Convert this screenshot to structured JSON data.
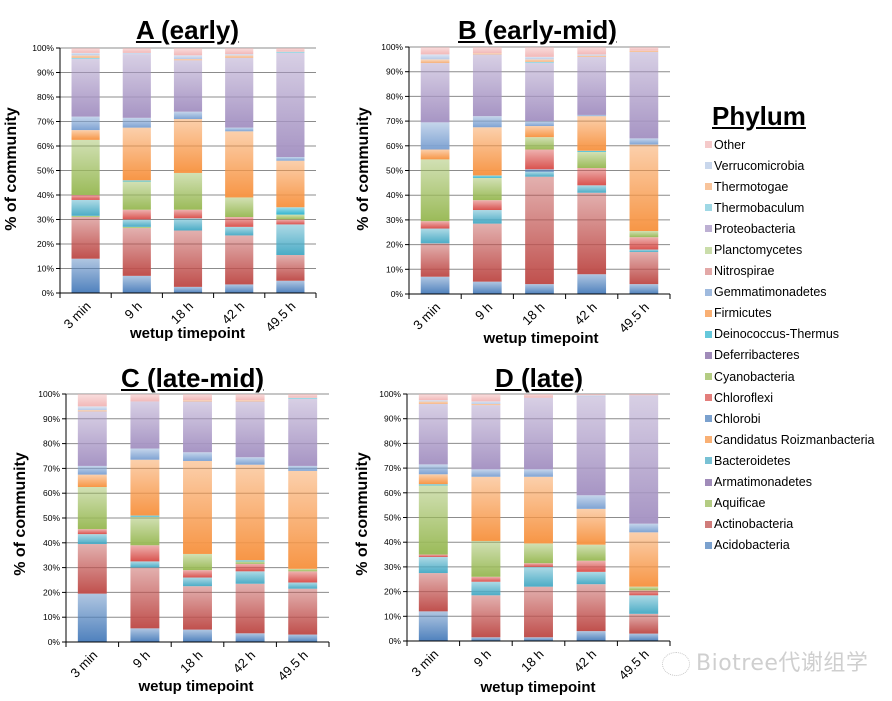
{
  "legend": {
    "title": "Phylum",
    "items_top_to_bottom": [
      "Other",
      "Verrucomicrobia",
      "Thermotogae",
      "Thermobaculum",
      "Proteobacteria",
      "Planctomycetes",
      "Nitrospirae",
      "Gemmatimonadetes",
      "Firmicutes",
      "Deinococcus-Thermus",
      "Deferribacteres",
      "Cyanobacteria",
      "Chloroflexi",
      "Chlorobi",
      "Candidatus Roizmanbacteria",
      "Bacteroidetes",
      "Armatimonadetes",
      "Aquificae",
      "Actinobacteria",
      "Acidobacteria"
    ]
  },
  "phyla": [
    {
      "name": "Acidobacteria",
      "color": "#4F81BD"
    },
    {
      "name": "Actinobacteria",
      "color": "#C0504D"
    },
    {
      "name": "Aquificae",
      "color": "#9BBB59"
    },
    {
      "name": "Armatimonadetes",
      "color": "#8064A2"
    },
    {
      "name": "Bacteroidetes",
      "color": "#4BACC6"
    },
    {
      "name": "Candidatus Roizmanbacteria",
      "color": "#F79646"
    },
    {
      "name": "Chlorobi",
      "color": "#4F81BD"
    },
    {
      "name": "Chloroflexi",
      "color": "#D9534F"
    },
    {
      "name": "Cyanobacteria",
      "color": "#9BBB59"
    },
    {
      "name": "Deferribacteres",
      "color": "#8064A2"
    },
    {
      "name": "Deinococcus-Thermus",
      "color": "#31B5CF"
    },
    {
      "name": "Firmicutes",
      "color": "#F79646"
    },
    {
      "name": "Gemmatimonadetes",
      "color": "#7FA3D3"
    },
    {
      "name": "Nitrospirae",
      "color": "#D98B8A"
    },
    {
      "name": "Planctomycetes",
      "color": "#B8D28E"
    },
    {
      "name": "Proteobacteria",
      "color": "#A795C4"
    },
    {
      "name": "Thermobaculum",
      "color": "#7FCBDC"
    },
    {
      "name": "Thermotogae",
      "color": "#F5B07A"
    },
    {
      "name": "Verrucomicrobia",
      "color": "#B7C9E6"
    },
    {
      "name": "Other",
      "color": "#F2B8B8"
    }
  ],
  "watermark": "Biotree代谢组学",
  "chart_data": [
    {
      "type": "bar",
      "stacked": true,
      "title": "A (early)",
      "xlabel": "wetup timepoint",
      "ylabel": "% of community",
      "ylim": [
        0,
        100
      ],
      "yticks": [
        "0%",
        "10%",
        "20%",
        "30%",
        "40%",
        "50%",
        "60%",
        "70%",
        "80%",
        "90%",
        "100%"
      ],
      "grid": true,
      "categories": [
        "3 min",
        "9 h",
        "18 h",
        "42 h",
        "49.5 h"
      ],
      "series": [
        {
          "name": "Acidobacteria",
          "values": [
            14,
            7,
            2.5,
            3.5,
            5
          ]
        },
        {
          "name": "Actinobacteria",
          "values": [
            17,
            19.5,
            23,
            20,
            10.5
          ]
        },
        {
          "name": "Aquificae",
          "values": [
            0.5,
            0.5,
            0,
            0,
            0
          ]
        },
        {
          "name": "Armatimonadetes",
          "values": [
            0,
            0,
            0,
            0,
            0
          ]
        },
        {
          "name": "Bacteroidetes",
          "values": [
            6.5,
            3,
            5,
            3.5,
            12.5
          ]
        },
        {
          "name": "Candidatus Roizmanbacteria",
          "values": [
            0,
            0,
            0,
            0,
            0
          ]
        },
        {
          "name": "Chlorobi",
          "values": [
            0,
            0,
            0,
            0,
            0
          ]
        },
        {
          "name": "Chloroflexi",
          "values": [
            2,
            4,
            3.5,
            4,
            2
          ]
        },
        {
          "name": "Cyanobacteria",
          "values": [
            22.5,
            11.5,
            15,
            8,
            2
          ]
        },
        {
          "name": "Deferribacteres",
          "values": [
            0,
            0,
            0,
            0,
            0
          ]
        },
        {
          "name": "Deinococcus-Thermus",
          "values": [
            0,
            0.5,
            0,
            0,
            3
          ]
        },
        {
          "name": "Firmicutes",
          "values": [
            4,
            21.5,
            22,
            27,
            19
          ]
        },
        {
          "name": "Gemmatimonadetes",
          "values": [
            5.5,
            4,
            3,
            1.5,
            1.5
          ]
        },
        {
          "name": "Nitrospirae",
          "values": [
            0,
            0,
            0,
            0,
            0
          ]
        },
        {
          "name": "Planctomycetes",
          "values": [
            0,
            0,
            0,
            0,
            0
          ]
        },
        {
          "name": "Proteobacteria",
          "values": [
            23.5,
            26,
            21,
            28.5,
            42.5
          ]
        },
        {
          "name": "Thermobaculum",
          "values": [
            0.5,
            0,
            0,
            0,
            0.5
          ]
        },
        {
          "name": "Thermotogae",
          "values": [
            1,
            0,
            0.5,
            1,
            0
          ]
        },
        {
          "name": "Verrucomicrobia",
          "values": [
            1,
            0.5,
            1.5,
            0.5,
            0
          ]
        },
        {
          "name": "Other",
          "values": [
            2,
            2,
            3,
            2.5,
            1.5
          ]
        }
      ]
    },
    {
      "type": "bar",
      "stacked": true,
      "title": "B (early-mid)",
      "xlabel": "wetup timepoint",
      "ylabel": "% of community",
      "ylim": [
        0,
        100
      ],
      "yticks": [
        "0%",
        "10%",
        "20%",
        "30%",
        "40%",
        "50%",
        "60%",
        "70%",
        "80%",
        "90%",
        "100%"
      ],
      "grid": true,
      "categories": [
        "3 min",
        "9 h",
        "18 h",
        "42 h",
        "49.5 h"
      ],
      "series": [
        {
          "name": "Acidobacteria",
          "values": [
            7,
            5,
            4,
            8,
            4
          ]
        },
        {
          "name": "Actinobacteria",
          "values": [
            13.5,
            23.5,
            43.5,
            33,
            13
          ]
        },
        {
          "name": "Aquificae",
          "values": [
            0,
            0,
            0,
            0,
            0
          ]
        },
        {
          "name": "Armatimonadetes",
          "values": [
            0,
            0,
            0,
            0,
            0
          ]
        },
        {
          "name": "Bacteroidetes",
          "values": [
            6,
            5.5,
            2,
            3,
            1
          ]
        },
        {
          "name": "Candidatus Roizmanbacteria",
          "values": [
            0,
            0,
            0,
            0,
            0
          ]
        },
        {
          "name": "Chlorobi",
          "values": [
            0,
            0,
            1,
            0,
            0
          ]
        },
        {
          "name": "Chloroflexi",
          "values": [
            3,
            4,
            8,
            7,
            5
          ]
        },
        {
          "name": "Cyanobacteria",
          "values": [
            25,
            9,
            5,
            6.5,
            2.5
          ]
        },
        {
          "name": "Deferribacteres",
          "values": [
            0,
            0,
            0,
            0,
            0
          ]
        },
        {
          "name": "Deinococcus-Thermus",
          "values": [
            0,
            1,
            0,
            0.5,
            0
          ]
        },
        {
          "name": "Firmicutes",
          "values": [
            4,
            19.5,
            4.5,
            14,
            35
          ]
        },
        {
          "name": "Gemmatimonadetes",
          "values": [
            11,
            4.5,
            2,
            0.5,
            2.5
          ]
        },
        {
          "name": "Nitrospirae",
          "values": [
            0,
            0,
            0,
            0,
            0
          ]
        },
        {
          "name": "Planctomycetes",
          "values": [
            0,
            0,
            0,
            0,
            0
          ]
        },
        {
          "name": "Proteobacteria",
          "values": [
            24,
            25,
            23.5,
            23.5,
            35
          ]
        },
        {
          "name": "Thermobaculum",
          "values": [
            0,
            0,
            0.5,
            0,
            0
          ]
        },
        {
          "name": "Thermotogae",
          "values": [
            1.5,
            0.5,
            1,
            0.5,
            0.5
          ]
        },
        {
          "name": "Verrucomicrobia",
          "values": [
            2,
            0,
            1,
            0.5,
            0
          ]
        },
        {
          "name": "Other",
          "values": [
            3,
            2.5,
            4,
            3,
            1.5
          ]
        }
      ]
    },
    {
      "type": "bar",
      "stacked": true,
      "title": "C (late-mid)",
      "xlabel": "wetup timepoint",
      "ylabel": "% of community",
      "ylim": [
        0,
        100
      ],
      "yticks": [
        "0%",
        "10%",
        "20%",
        "30%",
        "40%",
        "50%",
        "60%",
        "70%",
        "80%",
        "90%",
        "100%"
      ],
      "grid": true,
      "categories": [
        "3 min",
        "9 h",
        "18 h",
        "42 h",
        "49.5 h"
      ],
      "series": [
        {
          "name": "Acidobacteria",
          "values": [
            19.5,
            5.5,
            5,
            3.5,
            3
          ]
        },
        {
          "name": "Actinobacteria",
          "values": [
            20,
            24.5,
            17.5,
            20,
            18.5
          ]
        },
        {
          "name": "Aquificae",
          "values": [
            0,
            0,
            0,
            0,
            0
          ]
        },
        {
          "name": "Armatimonadetes",
          "values": [
            0,
            0,
            0,
            0,
            0
          ]
        },
        {
          "name": "Bacteroidetes",
          "values": [
            4,
            2.5,
            3.5,
            5,
            2.5
          ]
        },
        {
          "name": "Candidatus Roizmanbacteria",
          "values": [
            0,
            0,
            0,
            0,
            0
          ]
        },
        {
          "name": "Chlorobi",
          "values": [
            0,
            0,
            0,
            0,
            0
          ]
        },
        {
          "name": "Chloroflexi",
          "values": [
            2,
            6.5,
            3,
            3,
            4.5
          ]
        },
        {
          "name": "Cyanobacteria",
          "values": [
            17,
            11.5,
            6.5,
            1,
            1
          ]
        },
        {
          "name": "Deferribacteres",
          "values": [
            0,
            0,
            0,
            0,
            0
          ]
        },
        {
          "name": "Deinococcus-Thermus",
          "values": [
            0,
            0.5,
            0,
            0.5,
            0
          ]
        },
        {
          "name": "Firmicutes",
          "values": [
            5,
            22.5,
            37.5,
            38.5,
            39.5
          ]
        },
        {
          "name": "Gemmatimonadetes",
          "values": [
            3.5,
            4.5,
            3.5,
            3,
            2
          ]
        },
        {
          "name": "Nitrospirae",
          "values": [
            0,
            0,
            0,
            0,
            0
          ]
        },
        {
          "name": "Planctomycetes",
          "values": [
            0,
            0,
            0,
            0,
            0
          ]
        },
        {
          "name": "Proteobacteria",
          "values": [
            22,
            19,
            20.5,
            22.5,
            27
          ]
        },
        {
          "name": "Thermobaculum",
          "values": [
            0,
            0,
            0,
            0,
            0.5
          ]
        },
        {
          "name": "Thermotogae",
          "values": [
            0.5,
            0,
            0.5,
            0.5,
            0
          ]
        },
        {
          "name": "Verrucomicrobia",
          "values": [
            1.5,
            0,
            0,
            0,
            0
          ]
        },
        {
          "name": "Other",
          "values": [
            5,
            3,
            2.5,
            2.5,
            1.5
          ]
        }
      ]
    },
    {
      "type": "bar",
      "stacked": true,
      "title": "D (late)",
      "xlabel": "wetup timepoint",
      "ylabel": "% of community",
      "ylim": [
        0,
        100
      ],
      "yticks": [
        "0%",
        "10%",
        "20%",
        "30%",
        "40%",
        "50%",
        "60%",
        "70%",
        "80%",
        "90%",
        "100%"
      ],
      "grid": true,
      "categories": [
        "3 min",
        "9 h",
        "18 h",
        "42 h",
        "49.5 h"
      ],
      "series": [
        {
          "name": "Acidobacteria",
          "values": [
            12,
            1.5,
            1.5,
            4,
            3
          ]
        },
        {
          "name": "Actinobacteria",
          "values": [
            15.5,
            17,
            20.5,
            19,
            8
          ]
        },
        {
          "name": "Aquificae",
          "values": [
            0,
            0,
            0,
            0,
            0
          ]
        },
        {
          "name": "Armatimonadetes",
          "values": [
            0,
            0,
            0,
            0,
            0
          ]
        },
        {
          "name": "Bacteroidetes",
          "values": [
            6.5,
            5.5,
            8,
            5,
            7.5
          ]
        },
        {
          "name": "Candidatus Roizmanbacteria",
          "values": [
            0,
            0,
            0,
            0,
            0
          ]
        },
        {
          "name": "Chlorobi",
          "values": [
            0,
            0,
            0,
            0,
            0
          ]
        },
        {
          "name": "Chloroflexi",
          "values": [
            1,
            2,
            1.5,
            4.5,
            2
          ]
        },
        {
          "name": "Cyanobacteria",
          "values": [
            28,
            14.5,
            8,
            6.5,
            1.5
          ]
        },
        {
          "name": "Deferribacteres",
          "values": [
            0,
            0,
            0,
            0,
            0
          ]
        },
        {
          "name": "Deinococcus-Thermus",
          "values": [
            0.5,
            0,
            0,
            0,
            0
          ]
        },
        {
          "name": "Firmicutes",
          "values": [
            4,
            26,
            27,
            14.5,
            22
          ]
        },
        {
          "name": "Gemmatimonadetes",
          "values": [
            4,
            3,
            3,
            5.5,
            3.5
          ]
        },
        {
          "name": "Nitrospirae",
          "values": [
            0,
            0,
            0,
            0,
            0
          ]
        },
        {
          "name": "Planctomycetes",
          "values": [
            0,
            0,
            0,
            0,
            0
          ]
        },
        {
          "name": "Proteobacteria",
          "values": [
            24.5,
            26,
            29,
            40,
            52
          ]
        },
        {
          "name": "Thermobaculum",
          "values": [
            0,
            0,
            0,
            0,
            0
          ]
        },
        {
          "name": "Thermotogae",
          "values": [
            1,
            0.5,
            0,
            0,
            0
          ]
        },
        {
          "name": "Verrucomicrobia",
          "values": [
            0.5,
            1,
            0,
            0.5,
            0
          ]
        },
        {
          "name": "Other",
          "values": [
            2.5,
            3,
            1.5,
            0.5,
            0.5
          ]
        }
      ]
    }
  ]
}
